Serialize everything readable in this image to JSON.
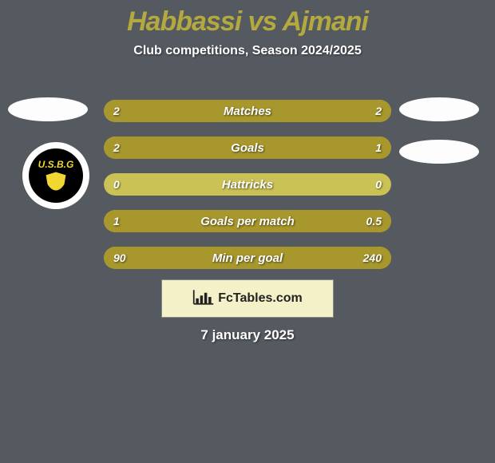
{
  "title": "Habbassi vs Ajmani",
  "subtitle": "Club competitions, Season 2024/2025",
  "date": "7 january 2025",
  "brand": "FcTables.com",
  "badge_text": "U.S.B.G",
  "colors": {
    "bar_bg": "#cbc256",
    "bar_fill": "#a7972c",
    "title": "#b3a93e",
    "page_bg": "#555a61"
  },
  "bars": [
    {
      "label": "Matches",
      "left_val": "2",
      "right_val": "2",
      "left_pct": 50,
      "right_pct": 50
    },
    {
      "label": "Goals",
      "left_val": "2",
      "right_val": "1",
      "left_pct": 67,
      "right_pct": 33
    },
    {
      "label": "Hattricks",
      "left_val": "0",
      "right_val": "0",
      "left_pct": 0,
      "right_pct": 0
    },
    {
      "label": "Goals per match",
      "left_val": "1",
      "right_val": "0.5",
      "left_pct": 67,
      "right_pct": 33
    },
    {
      "label": "Min per goal",
      "left_val": "90",
      "right_val": "240",
      "left_pct": 27,
      "right_pct": 73
    }
  ]
}
